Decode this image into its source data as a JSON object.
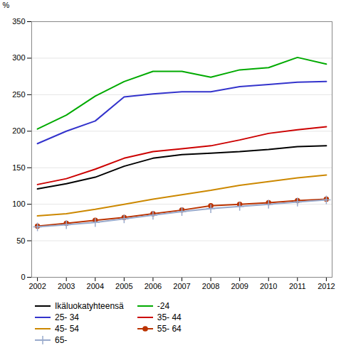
{
  "chart_data": {
    "type": "line",
    "ylabel": "%",
    "x": [
      2002,
      2003,
      2004,
      2005,
      2006,
      2007,
      2008,
      2009,
      2010,
      2011,
      2012
    ],
    "xlim": [
      2001.8,
      2012.2
    ],
    "xticks": [
      2002,
      2003,
      2004,
      2005,
      2006,
      2007,
      2008,
      2009,
      2010,
      2011,
      2012
    ],
    "ylim": [
      0,
      350
    ],
    "yticks": [
      0,
      50,
      100,
      150,
      200,
      250,
      300,
      350
    ],
    "grid": true,
    "series": [
      {
        "name": "Ikäluokatyhteensä",
        "color": "#000000",
        "values": [
          121,
          128,
          137,
          152,
          163,
          168,
          170,
          172,
          175,
          179,
          180
        ]
      },
      {
        "name": "-24",
        "color": "#00aa00",
        "values": [
          203,
          222,
          248,
          268,
          282,
          282,
          274,
          284,
          287,
          301,
          292
        ]
      },
      {
        "name": "25- 34",
        "color": "#3333cc",
        "values": [
          183,
          200,
          214,
          247,
          251,
          254,
          254,
          261,
          264,
          267,
          268
        ]
      },
      {
        "name": "35- 44",
        "color": "#cc0000",
        "values": [
          127,
          135,
          148,
          163,
          172,
          176,
          180,
          188,
          197,
          202,
          206
        ]
      },
      {
        "name": "45- 54",
        "color": "#cc8800",
        "values": [
          84,
          87,
          93,
          100,
          107,
          113,
          119,
          126,
          131,
          136,
          140
        ]
      },
      {
        "name": "55- 64",
        "color": "#bb3300",
        "marker": "circle",
        "values": [
          70,
          74,
          78,
          82,
          87,
          92,
          98,
          100,
          102,
          105,
          107
        ]
      },
      {
        "name": "65-",
        "color": "#99aacc",
        "marker": "plus",
        "values": [
          69,
          72,
          75,
          80,
          85,
          90,
          94,
          97,
          100,
          103,
          106
        ]
      }
    ]
  }
}
